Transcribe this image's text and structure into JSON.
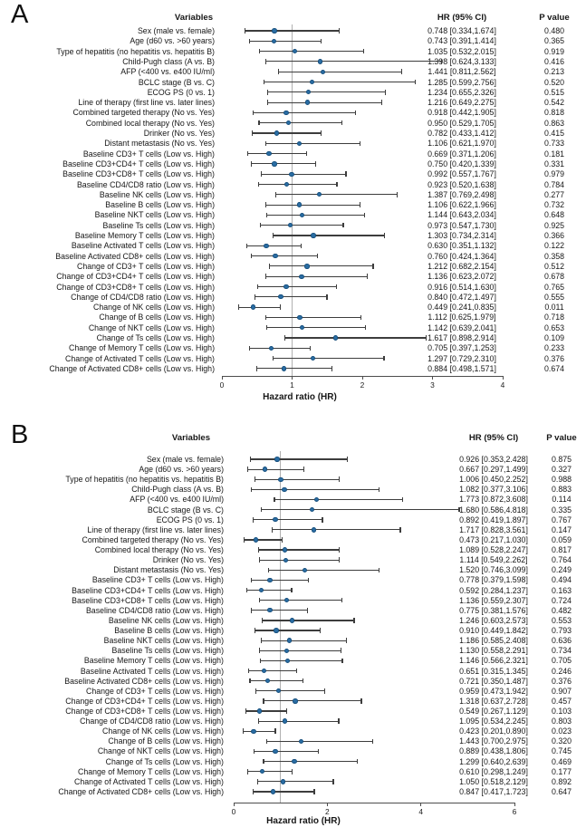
{
  "colors": {
    "marker": "#2a6da4",
    "marker_edge": "#17507e",
    "error_bar": "#3d3d3d",
    "ref_line": "#b0b0b0",
    "axis": "#4d4d4d"
  },
  "chart_data": [
    {
      "type": "scatter",
      "variant": "forest-plot",
      "panel": "A",
      "col_headers": {
        "variables": "Variables",
        "hr": "HR (95% CI)",
        "p": "P value"
      },
      "xlabel": "Hazard ratio (HR)",
      "axis": {
        "min": 0,
        "max": 4,
        "ticks": [
          0,
          1,
          2,
          3,
          4
        ],
        "ref_line": 1,
        "grid": false
      },
      "rows": [
        {
          "label": "Sex (male vs. female)",
          "hr": 0.748,
          "lo": 0.334,
          "hi": 1.674,
          "p": "0.480"
        },
        {
          "label": "Age (d60 vs. >60 years)",
          "hr": 0.743,
          "lo": 0.391,
          "hi": 1.414,
          "p": "0.365"
        },
        {
          "label": "Type of hepatitis (no hepatitis vs. hepatitis B)",
          "hr": 1.035,
          "lo": 0.532,
          "hi": 2.015,
          "p": "0.919"
        },
        {
          "label": "Child-Pugh class (A vs. B)",
          "hr": 1.398,
          "lo": 0.624,
          "hi": 3.133,
          "p": "0.416"
        },
        {
          "label": "AFP (<400 vs. e400 IU/ml)",
          "hr": 1.441,
          "lo": 0.811,
          "hi": 2.562,
          "p": "0.213"
        },
        {
          "label": "BCLC stage (B vs. C)",
          "hr": 1.285,
          "lo": 0.599,
          "hi": 2.756,
          "p": "0.520"
        },
        {
          "label": "ECOG PS (0 vs. 1)",
          "hr": 1.234,
          "lo": 0.655,
          "hi": 2.326,
          "p": "0.515"
        },
        {
          "label": "Line of therapy (first line vs. later lines)",
          "hr": 1.216,
          "lo": 0.649,
          "hi": 2.275,
          "p": "0.542"
        },
        {
          "label": "Combined targeted therapy (No vs. Yes)",
          "hr": 0.918,
          "lo": 0.442,
          "hi": 1.905,
          "p": "0.818"
        },
        {
          "label": "Combined local therapy (No vs. Yes)",
          "hr": 0.95,
          "lo": 0.529,
          "hi": 1.705,
          "p": "0.863"
        },
        {
          "label": "Drinker (No vs. Yes)",
          "hr": 0.782,
          "lo": 0.433,
          "hi": 1.412,
          "p": "0.415"
        },
        {
          "label": "Distant metastasis (No vs. Yes)",
          "hr": 1.106,
          "lo": 0.621,
          "hi": 1.97,
          "p": "0.733"
        },
        {
          "label": "Baseline CD3+ T cells (Low vs. High)",
          "hr": 0.669,
          "lo": 0.371,
          "hi": 1.206,
          "p": "0.181"
        },
        {
          "label": "Baseline CD3+CD4+ T cells (Low vs. High)",
          "hr": 0.75,
          "lo": 0.42,
          "hi": 1.339,
          "p": "0.331"
        },
        {
          "label": "Baseline CD3+CD8+ T cells (Low vs. High)",
          "hr": 0.992,
          "lo": 0.557,
          "hi": 1.767,
          "p": "0.979"
        },
        {
          "label": "Baseline CD4/CD8 ratio (Low vs. High)",
          "hr": 0.923,
          "lo": 0.52,
          "hi": 1.638,
          "p": "0.784"
        },
        {
          "label": "Baseline NK cells (Low vs. High)",
          "hr": 1.387,
          "lo": 0.769,
          "hi": 2.498,
          "p": "0.277"
        },
        {
          "label": "Baseline B cells (Low vs. High)",
          "hr": 1.106,
          "lo": 0.622,
          "hi": 1.966,
          "p": "0.732"
        },
        {
          "label": "Baseline NKT cells (Low vs. High)",
          "hr": 1.144,
          "lo": 0.643,
          "hi": 2.034,
          "p": "0.648"
        },
        {
          "label": "Baseline Ts cells (Low vs. High)",
          "hr": 0.973,
          "lo": 0.547,
          "hi": 1.73,
          "p": "0.925"
        },
        {
          "label": "Baseline Memory T cells (Low vs. High)",
          "hr": 1.303,
          "lo": 0.734,
          "hi": 2.314,
          "p": "0.366"
        },
        {
          "label": "Baseline Activated T cells (Low vs. High)",
          "hr": 0.63,
          "lo": 0.351,
          "hi": 1.132,
          "p": "0.122"
        },
        {
          "label": "Baseline Activated CD8+ cells (Low vs. High)",
          "hr": 0.76,
          "lo": 0.424,
          "hi": 1.364,
          "p": "0.358"
        },
        {
          "label": "Change of CD3+ T cells (Low vs. High)",
          "hr": 1.212,
          "lo": 0.682,
          "hi": 2.154,
          "p": "0.512"
        },
        {
          "label": "Change of CD3+CD4+ T cells (Low vs. High)",
          "hr": 1.136,
          "lo": 0.623,
          "hi": 2.072,
          "p": "0.678"
        },
        {
          "label": "Change of CD3+CD8+ T cells (Low vs. High)",
          "hr": 0.916,
          "lo": 0.514,
          "hi": 1.63,
          "p": "0.765"
        },
        {
          "label": "Change of CD4/CD8 ratio (Low vs. High)",
          "hr": 0.84,
          "lo": 0.472,
          "hi": 1.497,
          "p": "0.555"
        },
        {
          "label": "Change of NK cells (Low vs. High)",
          "hr": 0.449,
          "lo": 0.241,
          "hi": 0.835,
          "p": "0.011"
        },
        {
          "label": "Change of B cells (Low vs. High)",
          "hr": 1.112,
          "lo": 0.625,
          "hi": 1.979,
          "p": "0.718"
        },
        {
          "label": "Change of NKT cells (Low vs. High)",
          "hr": 1.142,
          "lo": 0.639,
          "hi": 2.041,
          "p": "0.653"
        },
        {
          "label": "Change of Ts cells (Low vs. High)",
          "hr": 1.617,
          "lo": 0.898,
          "hi": 2.914,
          "p": "0.109"
        },
        {
          "label": "Change of Memory T cells (Low vs. High)",
          "hr": 0.705,
          "lo": 0.397,
          "hi": 1.253,
          "p": "0.233"
        },
        {
          "label": "Change of Activated T cells (Low vs. High)",
          "hr": 1.297,
          "lo": 0.729,
          "hi": 2.31,
          "p": "0.376"
        },
        {
          "label": "Change of Activated CD8+ cells (Low vs. High)",
          "hr": 0.884,
          "lo": 0.498,
          "hi": 1.571,
          "p": "0.674"
        }
      ]
    },
    {
      "type": "scatter",
      "variant": "forest-plot",
      "panel": "B",
      "col_headers": {
        "variables": "Variables",
        "hr": "HR (95% CI)",
        "p": "P value"
      },
      "xlabel": "Hazard ratio (HR)",
      "axis": {
        "min": 0,
        "max": 6,
        "ticks": [
          0,
          2,
          4,
          6
        ],
        "ref_line": 1,
        "grid": false
      },
      "rows": [
        {
          "label": "Sex (male vs. female)",
          "hr": 0.926,
          "lo": 0.353,
          "hi": 2.428,
          "p": "0.875"
        },
        {
          "label": "Age (d60 vs. >60 years)",
          "hr": 0.667,
          "lo": 0.297,
          "hi": 1.499,
          "p": "0.327"
        },
        {
          "label": "Type of hepatitis (no hepatitis vs. hepatitis B)",
          "hr": 1.006,
          "lo": 0.45,
          "hi": 2.252,
          "p": "0.988"
        },
        {
          "label": "Child-Pugh class (A vs. B)",
          "hr": 1.082,
          "lo": 0.377,
          "hi": 3.106,
          "p": "0.883"
        },
        {
          "label": "AFP (<400 vs. e400 IU/ml)",
          "hr": 1.773,
          "lo": 0.872,
          "hi": 3.608,
          "p": "0.114"
        },
        {
          "label": "BCLC stage (B vs. C)",
          "hr": 1.68,
          "lo": 0.586,
          "hi": 4.818,
          "p": "0.335"
        },
        {
          "label": "ECOG PS (0 vs. 1)",
          "hr": 0.892,
          "lo": 0.419,
          "hi": 1.897,
          "p": "0.767"
        },
        {
          "label": "Line of therapy (first line vs. later lines)",
          "hr": 1.717,
          "lo": 0.828,
          "hi": 3.561,
          "p": "0.147"
        },
        {
          "label": "Combined targeted therapy (No vs. Yes)",
          "hr": 0.473,
          "lo": 0.217,
          "hi": 1.03,
          "p": "0.059"
        },
        {
          "label": "Combined local therapy (No vs. Yes)",
          "hr": 1.089,
          "lo": 0.528,
          "hi": 2.247,
          "p": "0.817"
        },
        {
          "label": "Drinker (No vs. Yes)",
          "hr": 1.114,
          "lo": 0.549,
          "hi": 2.262,
          "p": "0.764"
        },
        {
          "label": "Distant metastasis (No vs. Yes)",
          "hr": 1.52,
          "lo": 0.746,
          "hi": 3.099,
          "p": "0.249"
        },
        {
          "label": "Baseline CD3+ T cells (Low vs. High)",
          "hr": 0.778,
          "lo": 0.379,
          "hi": 1.598,
          "p": "0.494"
        },
        {
          "label": "Baseline CD3+CD4+ T cells (Low vs. High)",
          "hr": 0.592,
          "lo": 0.284,
          "hi": 1.237,
          "p": "0.163"
        },
        {
          "label": "Baseline CD3+CD8+ T cells (Low vs. High)",
          "hr": 1.136,
          "lo": 0.559,
          "hi": 2.307,
          "p": "0.724"
        },
        {
          "label": "Baseline CD4/CD8 ratio (Low vs. High)",
          "hr": 0.775,
          "lo": 0.381,
          "hi": 1.576,
          "p": "0.482"
        },
        {
          "label": "Baseline NK cells (Low vs. High)",
          "hr": 1.246,
          "lo": 0.603,
          "hi": 2.573,
          "p": "0.553"
        },
        {
          "label": "Baseline B cells (Low vs. High)",
          "hr": 0.91,
          "lo": 0.449,
          "hi": 1.842,
          "p": "0.793"
        },
        {
          "label": "Baseline NKT cells (Low vs. High)",
          "hr": 1.186,
          "lo": 0.585,
          "hi": 2.408,
          "p": "0.636"
        },
        {
          "label": "Baseline Ts cells (Low vs. High)",
          "hr": 1.13,
          "lo": 0.558,
          "hi": 2.291,
          "p": "0.734"
        },
        {
          "label": "Baseline Memory T cells (Low vs. High)",
          "hr": 1.146,
          "lo": 0.566,
          "hi": 2.321,
          "p": "0.705"
        },
        {
          "label": "Baseline Activated T cells (Low vs. High)",
          "hr": 0.651,
          "lo": 0.315,
          "hi": 1.345,
          "p": "0.246"
        },
        {
          "label": "Baseline Activated CD8+ cells (Low vs. High)",
          "hr": 0.721,
          "lo": 0.35,
          "hi": 1.487,
          "p": "0.376"
        },
        {
          "label": "Change of CD3+ T cells (Low vs. High)",
          "hr": 0.959,
          "lo": 0.473,
          "hi": 1.942,
          "p": "0.907"
        },
        {
          "label": "Change of CD3+CD4+ T cells (Low vs. High)",
          "hr": 1.318,
          "lo": 0.637,
          "hi": 2.728,
          "p": "0.457"
        },
        {
          "label": "Change of CD3+CD8+ T cells (Low vs. High)",
          "hr": 0.549,
          "lo": 0.267,
          "hi": 1.129,
          "p": "0.103"
        },
        {
          "label": "Change of CD4/CD8 ratio (Low vs. High)",
          "hr": 1.095,
          "lo": 0.534,
          "hi": 2.245,
          "p": "0.803"
        },
        {
          "label": "Change of NK cells (Low vs. High)",
          "hr": 0.423,
          "lo": 0.201,
          "hi": 0.89,
          "p": "0.023"
        },
        {
          "label": "Change of B cells (Low vs. High)",
          "hr": 1.443,
          "lo": 0.7,
          "hi": 2.975,
          "p": "0.320"
        },
        {
          "label": "Change of NKT cells (Low vs. High)",
          "hr": 0.889,
          "lo": 0.438,
          "hi": 1.806,
          "p": "0.745"
        },
        {
          "label": "Change of Ts cells (Low vs. High)",
          "hr": 1.299,
          "lo": 0.64,
          "hi": 2.639,
          "p": "0.469"
        },
        {
          "label": "Change of Memory T cells (Low vs. High)",
          "hr": 0.61,
          "lo": 0.298,
          "hi": 1.249,
          "p": "0.177"
        },
        {
          "label": "Change of Activated T cells (Low vs. High)",
          "hr": 1.05,
          "lo": 0.518,
          "hi": 2.129,
          "p": "0.892"
        },
        {
          "label": "Change of Activated CD8+ cells (Low vs. High)",
          "hr": 0.847,
          "lo": 0.417,
          "hi": 1.723,
          "p": "0.647"
        }
      ]
    }
  ]
}
